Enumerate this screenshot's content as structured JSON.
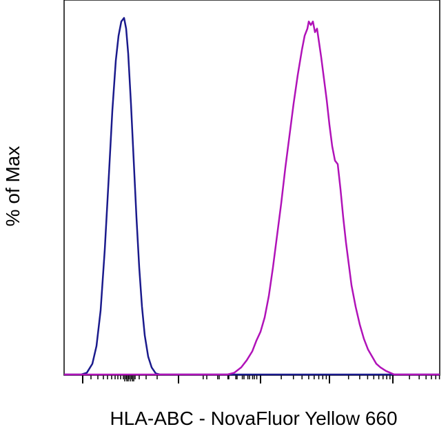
{
  "chart_data": {
    "type": "line",
    "title": "",
    "xlabel": "HLA-ABC - NovaFluor Yellow 660",
    "ylabel": "% of Max",
    "xscale": "logicle",
    "x_tick_labels_shown": false,
    "y_tick_labels_shown": false,
    "grid": false,
    "legend": "none",
    "ylim": [
      0,
      100
    ],
    "series": [
      {
        "color": "#1a1a8c",
        "points": [
          [
            118,
            0
          ],
          [
            126,
            0.5
          ],
          [
            134,
            3
          ],
          [
            140,
            8
          ],
          [
            146,
            18
          ],
          [
            152,
            35
          ],
          [
            158,
            56
          ],
          [
            163,
            74
          ],
          [
            168,
            88
          ],
          [
            172,
            95
          ],
          [
            176,
            99
          ],
          [
            180,
            100
          ],
          [
            183,
            97
          ],
          [
            186,
            90
          ],
          [
            190,
            76
          ],
          [
            194,
            60
          ],
          [
            198,
            44
          ],
          [
            202,
            30
          ],
          [
            206,
            19
          ],
          [
            210,
            11
          ],
          [
            215,
            5
          ],
          [
            220,
            2
          ],
          [
            226,
            0.3
          ],
          [
            232,
            0
          ]
        ]
      },
      {
        "color": "#b012b8",
        "points": [
          [
            330,
            0
          ],
          [
            340,
            0.5
          ],
          [
            350,
            2
          ],
          [
            358,
            4
          ],
          [
            366,
            6.5
          ],
          [
            372,
            9.5
          ],
          [
            378,
            12
          ],
          [
            384,
            16
          ],
          [
            390,
            22
          ],
          [
            396,
            30
          ],
          [
            402,
            39
          ],
          [
            408,
            48
          ],
          [
            414,
            58
          ],
          [
            420,
            67
          ],
          [
            426,
            76
          ],
          [
            432,
            84
          ],
          [
            438,
            91
          ],
          [
            442,
            95
          ],
          [
            446,
            97
          ],
          [
            448,
            99
          ],
          [
            451,
            98
          ],
          [
            454,
            99
          ],
          [
            457,
            96
          ],
          [
            460,
            97
          ],
          [
            463,
            93
          ],
          [
            466,
            89
          ],
          [
            470,
            83
          ],
          [
            474,
            77
          ],
          [
            478,
            70
          ],
          [
            482,
            64
          ],
          [
            486,
            60
          ],
          [
            490,
            59
          ],
          [
            494,
            52
          ],
          [
            498,
            44
          ],
          [
            502,
            37
          ],
          [
            506,
            31
          ],
          [
            510,
            25
          ],
          [
            516,
            19
          ],
          [
            522,
            14
          ],
          [
            528,
            10
          ],
          [
            534,
            7
          ],
          [
            540,
            5
          ],
          [
            546,
            3
          ],
          [
            552,
            2
          ],
          [
            560,
            1
          ],
          [
            566,
            0.5
          ],
          [
            572,
            0
          ]
        ]
      }
    ]
  }
}
